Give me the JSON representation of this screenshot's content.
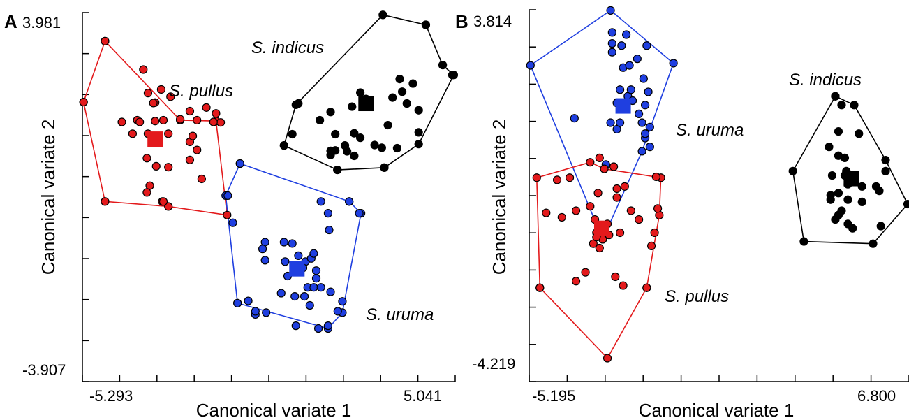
{
  "chart_data": [
    {
      "panel": "A",
      "type": "scatter",
      "xlabel": "Canonical variate 1",
      "ylabel": "Canonical variate 2",
      "xlim": [
        -5.293,
        5.041
      ],
      "ylim": [
        -3.907,
        3.981
      ],
      "x_tick_labels": [
        "-5.293",
        "5.041"
      ],
      "y_tick_labels": [
        "3.981",
        "-3.907"
      ],
      "series": [
        {
          "name": "S. pullus",
          "color": "#e31a1c",
          "centroid": [
            -3.3,
            1.18
          ],
          "points": [
            [
              -4.7,
              3.35
            ],
            [
              -5.3,
              2.0
            ],
            [
              -4.7,
              -0.2
            ],
            [
              -3.63,
              2.72
            ],
            [
              -3.8,
              1.6
            ],
            [
              -3.5,
              2.2
            ],
            [
              -3.3,
              1.99
            ],
            [
              -3.13,
              2.28
            ],
            [
              -2.87,
              2.12
            ],
            [
              -2.33,
              1.8
            ],
            [
              -1.87,
              1.88
            ],
            [
              -1.6,
              1.75
            ],
            [
              -1.47,
              1.55
            ],
            [
              -1.67,
              1.56
            ],
            [
              -2.13,
              1.6
            ],
            [
              -2.6,
              1.62
            ],
            [
              -3.07,
              1.6
            ],
            [
              -4.23,
              1.56
            ],
            [
              -3.73,
              1.56
            ],
            [
              -3.3,
              1.58
            ],
            [
              -3.93,
              1.3
            ],
            [
              -3.5,
              1.3
            ],
            [
              -2.93,
              1.3
            ],
            [
              -2.33,
              1.12
            ],
            [
              -2.33,
              0.72
            ],
            [
              -3.53,
              0.76
            ],
            [
              -3.27,
              0.58
            ],
            [
              -2.93,
              0.56
            ],
            [
              -2.0,
              0.3
            ],
            [
              -3.45,
              0.15
            ],
            [
              -3.53,
              0.0
            ],
            [
              -3.1,
              -0.2
            ],
            [
              -3.07,
              -0.2
            ],
            [
              -3.35,
              1.98
            ],
            [
              -2.13,
              0.94
            ],
            [
              -2.25,
              1.25
            ]
          ],
          "hull": [
            [
              -4.7,
              3.35
            ],
            [
              -2.6,
              1.6
            ],
            [
              -1.6,
              1.58
            ],
            [
              -1.29,
              -0.5
            ],
            [
              -2.93,
              -0.31
            ],
            [
              -4.7,
              -0.2
            ],
            [
              -5.3,
              2.0
            ]
          ]
        },
        {
          "name": "S. indicus",
          "color": "#000000",
          "centroid": [
            2.59,
            1.97
          ],
          "points": [
            [
              3.06,
              3.93
            ],
            [
              4.26,
              3.71
            ],
            [
              4.73,
              2.82
            ],
            [
              5.0,
              2.6
            ],
            [
              0.7,
              1.97
            ],
            [
              1.6,
              1.78
            ],
            [
              2.2,
              1.9
            ],
            [
              2.59,
              2.07
            ],
            [
              2.43,
              2.21
            ],
            [
              3.53,
              2.51
            ],
            [
              3.9,
              2.41
            ],
            [
              3.33,
              2.1
            ],
            [
              3.6,
              2.23
            ],
            [
              3.73,
              1.97
            ],
            [
              4.06,
              1.82
            ],
            [
              3.2,
              1.49
            ],
            [
              0.53,
              1.29
            ],
            [
              1.3,
              1.6
            ],
            [
              1.73,
              1.29
            ],
            [
              2.26,
              1.31
            ],
            [
              2.43,
              1.21
            ],
            [
              3.03,
              0.99
            ],
            [
              2.83,
              1.05
            ],
            [
              3.46,
              0.98
            ],
            [
              4.06,
              1.33
            ],
            [
              1.73,
              0.93
            ],
            [
              2.06,
              0.91
            ],
            [
              0.3,
              1.04
            ],
            [
              2.0,
              1.04
            ],
            [
              1.6,
              0.83
            ],
            [
              1.6,
              0.92
            ],
            [
              2.26,
              0.81
            ],
            [
              1.79,
              0.5
            ],
            [
              3.1,
              0.55
            ]
          ],
          "hull": [
            [
              3.06,
              3.93
            ],
            [
              4.26,
              3.71
            ],
            [
              4.73,
              2.82
            ],
            [
              5.04,
              2.6
            ],
            [
              4.06,
              1.07
            ],
            [
              3.1,
              0.55
            ],
            [
              1.79,
              0.5
            ],
            [
              0.3,
              1.04
            ],
            [
              0.63,
              1.94
            ]
          ]
        },
        {
          "name": "S. uruma",
          "color": "#1f3fe0",
          "centroid": [
            0.66,
            -1.69
          ],
          "points": [
            [
              -0.93,
              0.64
            ],
            [
              -1.27,
              -0.07
            ],
            [
              -1.13,
              -0.67
            ],
            [
              -0.23,
              -1.1
            ],
            [
              -0.3,
              -1.25
            ],
            [
              0.3,
              -1.1
            ],
            [
              0.33,
              -1.53
            ],
            [
              0.53,
              -1.13
            ],
            [
              0.7,
              -1.4
            ],
            [
              0.9,
              -1.53
            ],
            [
              1.06,
              -1.46
            ],
            [
              1.53,
              -0.46
            ],
            [
              1.56,
              -0.83
            ],
            [
              2.12,
              -0.2
            ],
            [
              2.4,
              -0.46
            ],
            [
              1.33,
              -0.2
            ],
            [
              1.13,
              -1.35
            ],
            [
              0.83,
              -1.67
            ],
            [
              1.2,
              -1.9
            ],
            [
              0.96,
              -2.1
            ],
            [
              1.13,
              -2.1
            ],
            [
              1.6,
              -2.2
            ],
            [
              1.33,
              -2.1
            ],
            [
              1.2,
              -1.73
            ],
            [
              -0.7,
              -2.4
            ],
            [
              -1.0,
              -2.45
            ],
            [
              0.4,
              -1.85
            ],
            [
              -0.23,
              -1.5
            ],
            [
              0.87,
              -2.3
            ],
            [
              1.02,
              -2.5
            ],
            [
              0.22,
              -2.23
            ],
            [
              0.6,
              -2.3
            ],
            [
              -0.2,
              -2.66
            ],
            [
              -0.5,
              -2.7
            ],
            [
              -0.5,
              -2.63
            ],
            [
              1.8,
              -2.63
            ],
            [
              0.63,
              -2.95
            ],
            [
              1.53,
              -2.95
            ],
            [
              1.26,
              -3.01
            ],
            [
              1.93,
              -2.41
            ]
          ],
          "hull": [
            [
              -0.93,
              0.64
            ],
            [
              2.12,
              -0.2
            ],
            [
              2.45,
              -0.46
            ],
            [
              1.93,
              -2.66
            ],
            [
              1.53,
              -3.01
            ],
            [
              -1.0,
              -2.45
            ],
            [
              -1.33,
              -0.07
            ]
          ]
        }
      ]
    },
    {
      "panel": "B",
      "type": "scatter",
      "xlabel": "Canonical variate 1",
      "ylabel": "Canonical variate 2",
      "xlim": [
        -5.195,
        6.8
      ],
      "ylim": [
        -4.219,
        3.814
      ],
      "x_tick_labels": [
        "-5.195",
        "6.800"
      ],
      "y_tick_labels": [
        "3.814",
        "-4.219"
      ],
      "series": [
        {
          "name": "S. uruma",
          "color": "#1f3fe0",
          "centroid": [
            -2.25,
            1.63
          ],
          "points": [
            [
              -2.6,
              3.3
            ],
            [
              -2.15,
              3.25
            ],
            [
              -2.6,
              3.05
            ],
            [
              -2.3,
              3.0
            ],
            [
              -1.5,
              3.0
            ],
            [
              -1.8,
              2.7
            ],
            [
              -2.6,
              2.85
            ],
            [
              -2.25,
              2.5
            ],
            [
              -2.05,
              2.55
            ],
            [
              -1.6,
              2.25
            ],
            [
              -1.45,
              1.95
            ],
            [
              -2.35,
              2.0
            ],
            [
              -2.1,
              1.85
            ],
            [
              -2.45,
              1.7
            ],
            [
              -1.75,
              1.45
            ],
            [
              -1.55,
              1.65
            ],
            [
              -1.65,
              1.25
            ],
            [
              -2.65,
              1.25
            ],
            [
              -2.45,
              1.1
            ],
            [
              -1.4,
              1.15
            ],
            [
              -1.55,
              0.9
            ],
            [
              -1.55,
              1.0
            ],
            [
              -1.4,
              0.7
            ],
            [
              -2.35,
              1.25
            ],
            [
              -3.8,
              1.35
            ],
            [
              -2.0,
              2.0
            ],
            [
              -1.95,
              1.75
            ],
            [
              -2.8,
              0.3
            ]
          ],
          "hull": [
            [
              -2.65,
              3.8
            ],
            [
              -0.65,
              2.6
            ],
            [
              -1.65,
              0.6
            ],
            [
              -2.9,
              -1.4
            ],
            [
              -5.2,
              2.55
            ]
          ]
        },
        {
          "name": "S. indicus",
          "color": "#000000",
          "centroid": [
            5.01,
            -0.02
          ],
          "points": [
            [
              4.5,
              1.85
            ],
            [
              4.7,
              1.65
            ],
            [
              4.6,
              1.05
            ],
            [
              5.25,
              1.0
            ],
            [
              4.3,
              0.7
            ],
            [
              4.6,
              0.5
            ],
            [
              4.8,
              0.45
            ],
            [
              4.85,
              0.15
            ],
            [
              4.4,
              0.05
            ],
            [
              4.8,
              0.05
            ],
            [
              5.35,
              -0.2
            ],
            [
              5.35,
              -0.55
            ],
            [
              4.9,
              -0.5
            ],
            [
              4.35,
              -0.4
            ],
            [
              4.6,
              -0.35
            ],
            [
              4.35,
              -0.5
            ],
            [
              5.8,
              -0.2
            ],
            [
              5.9,
              -0.3
            ],
            [
              5.95,
              -1.1
            ],
            [
              4.6,
              -0.85
            ],
            [
              5.05,
              -1.15
            ],
            [
              4.9,
              -1.05
            ],
            [
              4.5,
              -0.95
            ],
            [
              6.1,
              0.15
            ],
            [
              4.7,
              -0.75
            ],
            [
              4.9,
              -0.15
            ]
          ],
          "hull": [
            [
              4.5,
              1.85
            ],
            [
              3.15,
              0.15
            ],
            [
              3.5,
              -1.45
            ],
            [
              5.7,
              -1.5
            ],
            [
              6.8,
              -0.6
            ],
            [
              6.1,
              0.4
            ],
            [
              5.1,
              1.65
            ]
          ]
        },
        {
          "name": "S. pullus",
          "color": "#e31a1c",
          "centroid": [
            -2.93,
            -1.15
          ],
          "points": [
            [
              -3.0,
              0.45
            ],
            [
              -2.55,
              0.25
            ],
            [
              -1.2,
              0.02
            ],
            [
              -3.95,
              0.0
            ],
            [
              -4.35,
              -0.05
            ],
            [
              -2.2,
              -0.2
            ],
            [
              -3.05,
              -0.35
            ],
            [
              -2.45,
              -0.25
            ],
            [
              -2.45,
              -0.45
            ],
            [
              -4.7,
              -0.8
            ],
            [
              -4.2,
              -0.9
            ],
            [
              -3.75,
              -0.75
            ],
            [
              -3.3,
              -0.65
            ],
            [
              -2.0,
              -0.75
            ],
            [
              -1.15,
              -0.7
            ],
            [
              -3.15,
              -0.95
            ],
            [
              -2.75,
              -1.05
            ],
            [
              -3.1,
              -1.25
            ],
            [
              -2.7,
              -1.3
            ],
            [
              -2.35,
              -1.25
            ],
            [
              -1.75,
              -0.95
            ],
            [
              -1.25,
              -1.25
            ],
            [
              -2.9,
              -1.4
            ],
            [
              -3.2,
              -1.5
            ],
            [
              -3.0,
              -1.6
            ],
            [
              -1.35,
              -1.55
            ],
            [
              -3.45,
              -2.15
            ],
            [
              -2.5,
              -2.25
            ],
            [
              -3.75,
              -2.35
            ],
            [
              -2.25,
              -2.45
            ],
            [
              -4.9,
              -2.5
            ],
            [
              -1.5,
              -2.5
            ],
            [
              -3.1,
              -1.35
            ]
          ],
          "hull": [
            [
              -3.3,
              0.35
            ],
            [
              -2.85,
              0.2
            ],
            [
              -1.05,
              0.0
            ],
            [
              -1.1,
              -0.85
            ],
            [
              -1.5,
              -2.5
            ],
            [
              -2.75,
              -4.1
            ],
            [
              -4.9,
              -2.5
            ],
            [
              -5.0,
              0.0
            ]
          ]
        }
      ]
    }
  ]
}
